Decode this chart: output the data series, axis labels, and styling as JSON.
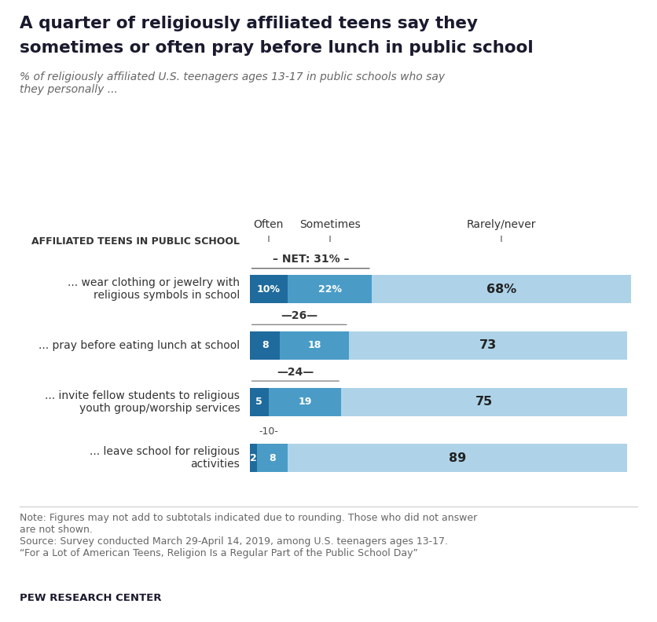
{
  "title_line1": "A quarter of religiously affiliated teens say they",
  "title_line2": "sometimes or often pray before lunch in public school",
  "subtitle": "% of religiously affiliated U.S. teenagers ages 13-17 in public schools who say\nthey personally ...",
  "categories": [
    "... wear clothing or jewelry with\nreligious symbols in school",
    "... pray before eating lunch at school",
    "... invite fellow students to religious\nyouth group/worship services",
    "... leave school for religious\nactivities"
  ],
  "often": [
    10,
    8,
    5,
    2
  ],
  "sometimes": [
    22,
    18,
    19,
    8
  ],
  "rarely_never": [
    68,
    73,
    75,
    89
  ],
  "net": [
    31,
    26,
    24,
    10
  ],
  "color_often": "#1f6b9e",
  "color_sometimes": "#4a9cc7",
  "color_rarely": "#aed3e8",
  "note_line1": "Note: Figures may not add to subtotals indicated due to rounding. Those who did not answer",
  "note_line2": "are not shown.",
  "note_line3": "Source: Survey conducted March 29-April 14, 2019, among U.S. teenagers ages 13-17.",
  "note_line4": "“For a Lot of American Teens, Religion Is a Regular Part of the Public School Day”",
  "footer": "PEW RESEARCH CENTER",
  "col_header_often": "Often",
  "col_header_sometimes": "Sometimes",
  "col_header_rarely": "Rarely/never",
  "left_header": "AFFILIATED TEENS IN PUBLIC SCHOOL"
}
